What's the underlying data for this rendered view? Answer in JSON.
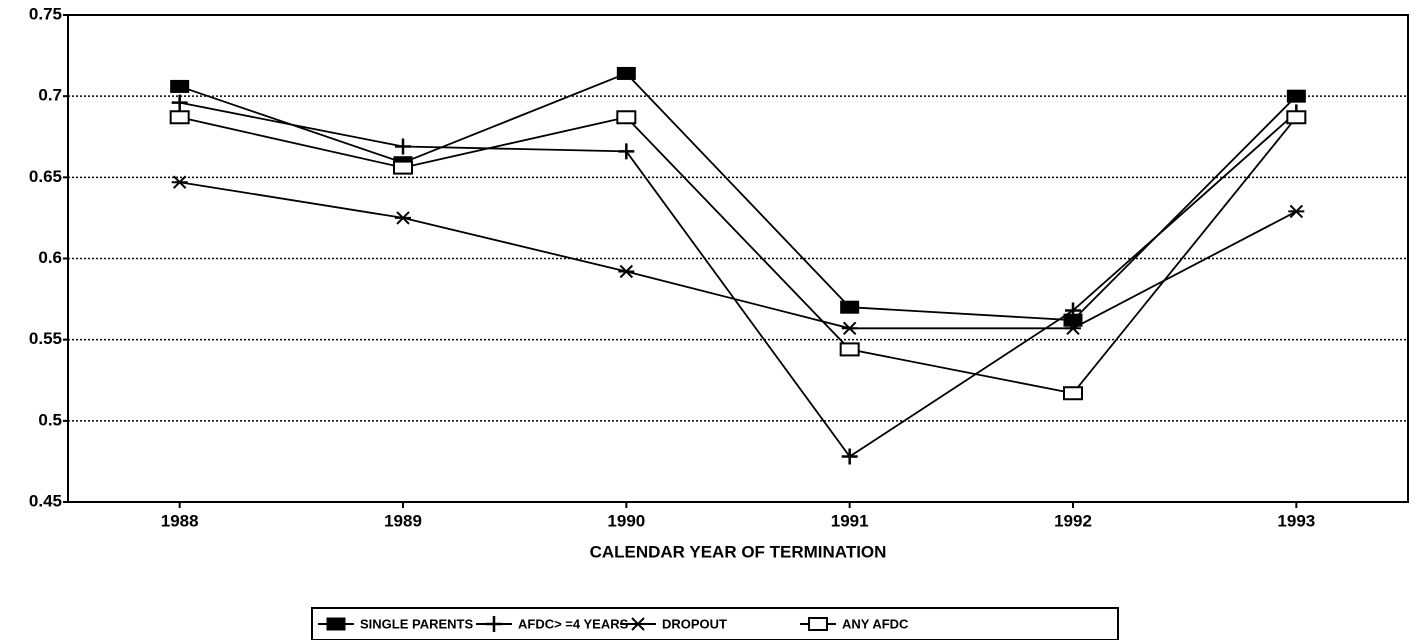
{
  "chart_data": {
    "type": "line",
    "x_label": "CALENDAR YEAR OF TERMINATION",
    "categories": [
      "1988",
      "1989",
      "1990",
      "1991",
      "1992",
      "1993"
    ],
    "series": [
      {
        "name": "SINGLE PARENTS",
        "color": "#000000",
        "marker": "filled-square",
        "values": [
          0.706,
          0.659,
          0.714,
          0.57,
          0.562,
          0.7
        ]
      },
      {
        "name": "AFDC> =4 YEARS",
        "color": "#000000",
        "marker": "plus",
        "values": [
          0.696,
          0.669,
          0.666,
          0.478,
          0.568,
          0.69
        ]
      },
      {
        "name": "DROPOUT",
        "color": "#000000",
        "marker": "asterisk",
        "values": [
          0.647,
          0.625,
          0.592,
          0.557,
          0.557,
          0.629
        ]
      },
      {
        "name": "ANY AFDC",
        "color": "#000000",
        "marker": "open-square",
        "values": [
          0.687,
          0.656,
          0.687,
          0.544,
          0.517,
          0.687
        ]
      }
    ],
    "ylim": [
      0.45,
      0.75
    ],
    "yticks": [
      0.45,
      0.5,
      0.55,
      0.6,
      0.65,
      0.7,
      0.75
    ],
    "grid": true,
    "legend": "bottom"
  }
}
